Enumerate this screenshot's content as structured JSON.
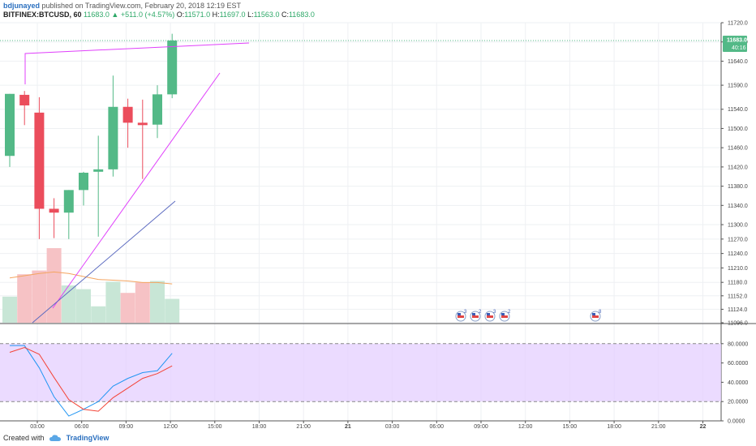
{
  "header": {
    "author": "bdjunayed",
    "published_text": "published on TradingView.com, February 20, 2018 12:19 EST",
    "symbol_line": "BITFINEX:BTCUSD, 60",
    "last_value": "11683.0",
    "change_text": "+511.0 (+4.57%)",
    "ohlc": {
      "o_label": "O:",
      "o": "11571.0",
      "h_label": "H:",
      "h": "11697.0",
      "l_label": "L:",
      "l": "11563.0",
      "c_label": "C:",
      "c": "11683.0"
    }
  },
  "footer": {
    "created_with": "Created with",
    "brand": "TradingView"
  },
  "price_badge": {
    "price": "11683.0",
    "countdown": "40:16"
  },
  "colors": {
    "up": "#53b987",
    "down": "#eb4d5c",
    "up_volume": "#c8e6d6",
    "down_volume": "#f6c2c5",
    "rsi_fast": "#2196f3",
    "rsi_slow": "#f44336",
    "rsi_band": "#e4cfff",
    "trend_magenta": "#e040fb",
    "trend_blue": "#5c6bc0",
    "volume_ma": "#f4a460"
  },
  "events": [
    {
      "label": "3",
      "icon": "us-flag-icon"
    },
    {
      "label": "2",
      "icon": "us-flag-icon"
    },
    {
      "label": "3",
      "icon": "us-flag-icon"
    },
    {
      "label": "2",
      "icon": "us-flag-icon"
    },
    {
      "label": "8",
      "icon": "us-flag-icon"
    }
  ],
  "chart_data": [
    {
      "type": "candlestick",
      "timeframe": "60",
      "y_ticks": [
        "11720.0",
        "11680.0",
        "11640.0",
        "11590.0",
        "11540.0",
        "11500.0",
        "11460.0",
        "11420.0",
        "11380.0",
        "11340.0",
        "11300.0",
        "11270.0",
        "11240.0",
        "11210.0",
        "11180.0",
        "11152.0",
        "11124.0",
        "11096.0"
      ],
      "x_ticks": [
        "03:00",
        "06:00",
        "09:00",
        "12:00",
        "15:00",
        "18:00",
        "21:00",
        "21",
        "03:00",
        "06:00",
        "09:00",
        "12:00",
        "15:00",
        "18:00",
        "21:00",
        "22"
      ],
      "candles": [
        {
          "t": "01:00",
          "o": 11443,
          "h": 11572,
          "l": 11420,
          "c": 11572
        },
        {
          "t": "02:00",
          "o": 11570,
          "h": 11578,
          "l": 11507,
          "c": 11548
        },
        {
          "t": "03:00",
          "o": 11533,
          "h": 11565,
          "l": 11270,
          "c": 11333
        },
        {
          "t": "04:00",
          "o": 11333,
          "h": 11355,
          "l": 11272,
          "c": 11325
        },
        {
          "t": "05:00",
          "o": 11325,
          "h": 11372,
          "l": 11270,
          "c": 11372
        },
        {
          "t": "06:00",
          "o": 11372,
          "h": 11410,
          "l": 11340,
          "c": 11408
        },
        {
          "t": "07:00",
          "o": 11410,
          "h": 11485,
          "l": 11275,
          "c": 11415
        },
        {
          "t": "08:00",
          "o": 11415,
          "h": 11610,
          "l": 11400,
          "c": 11545
        },
        {
          "t": "09:00",
          "o": 11545,
          "h": 11562,
          "l": 11460,
          "c": 11512
        },
        {
          "t": "10:00",
          "o": 11512,
          "h": 11560,
          "l": 11395,
          "c": 11507
        },
        {
          "t": "11:00",
          "o": 11508,
          "h": 11590,
          "l": 11480,
          "c": 11571
        },
        {
          "t": "12:00",
          "o": 11571,
          "h": 11697,
          "l": 11563,
          "c": 11683
        }
      ],
      "current_price": 11683.0,
      "y_range": [
        11096,
        11720
      ]
    },
    {
      "type": "bar",
      "name": "volume",
      "values": [
        0.35,
        0.65,
        0.7,
        1.0,
        0.5,
        0.45,
        0.22,
        0.55,
        0.4,
        0.54,
        0.56,
        0.32
      ],
      "up": [
        true,
        false,
        false,
        false,
        true,
        true,
        true,
        true,
        false,
        false,
        true,
        true
      ],
      "ma": [
        0.6,
        0.63,
        0.66,
        0.68,
        0.66,
        0.62,
        0.58,
        0.57,
        0.56,
        0.54,
        0.54,
        0.52
      ]
    },
    {
      "type": "line",
      "name": "stochastic_rsi",
      "y_ticks": [
        "80.0000",
        "60.0000",
        "40.0000",
        "20.0000",
        "0.0000"
      ],
      "ylim": [
        0,
        100
      ],
      "bands": [
        20,
        80
      ],
      "series": [
        {
          "values": [
            78,
            78,
            55,
            25,
            5,
            12,
            20,
            36,
            44,
            50,
            52,
            70
          ]
        },
        {
          "values": [
            71,
            76,
            69,
            45,
            22,
            12,
            10,
            24,
            34,
            44,
            49,
            57
          ]
        }
      ]
    }
  ]
}
